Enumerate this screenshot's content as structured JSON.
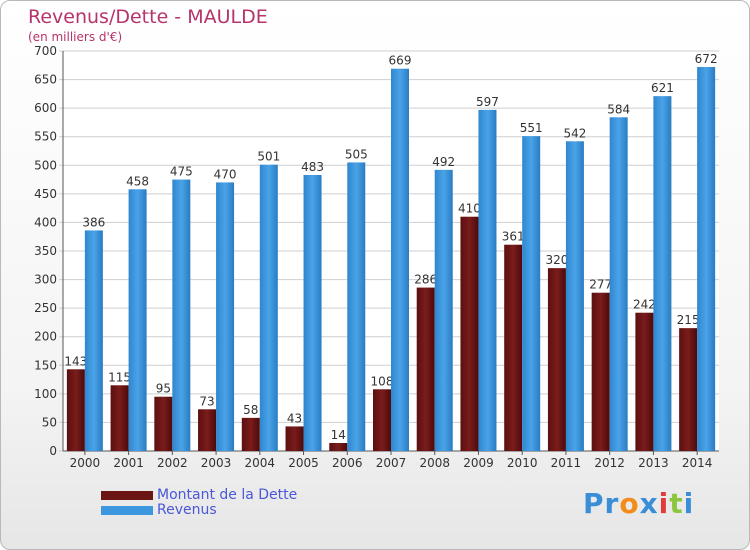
{
  "title": "Revenus/Dette - MAULDE",
  "subtitle": "(en milliers d'€)",
  "logo": {
    "letters": [
      "P",
      "r",
      "o",
      "x",
      "i",
      "t",
      "i"
    ],
    "colors": [
      "#3a8ed8",
      "#3a8ed8",
      "#f28c1b",
      "#3a8ed8",
      "#e23b3b",
      "#8cc63f",
      "#3a8ed8"
    ]
  },
  "colors": {
    "dette": "#7a1c1c",
    "revenus": "#4aa3e8"
  },
  "legend": [
    {
      "label": "Montant de la Dette",
      "color": "#6b1515"
    },
    {
      "label": "Revenus",
      "color": "#3d97df"
    }
  ],
  "chart_data": {
    "type": "bar",
    "title": "Revenus/Dette - MAULDE",
    "subtitle": "(en milliers d'€)",
    "categories": [
      "2000",
      "2001",
      "2002",
      "2003",
      "2004",
      "2005",
      "2006",
      "2007",
      "2008",
      "2009",
      "2010",
      "2011",
      "2012",
      "2013",
      "2014"
    ],
    "series": [
      {
        "name": "Montant de la Dette",
        "values": [
          143,
          115,
          95,
          73,
          58,
          43,
          14,
          108,
          286,
          410,
          361,
          320,
          277,
          242,
          215
        ]
      },
      {
        "name": "Revenus",
        "values": [
          386,
          458,
          475,
          470,
          501,
          483,
          505,
          669,
          492,
          597,
          551,
          542,
          584,
          621,
          672
        ]
      }
    ],
    "ylim": [
      0,
      700
    ],
    "yticks": [
      0,
      50,
      100,
      150,
      200,
      250,
      300,
      350,
      400,
      450,
      500,
      550,
      600,
      650,
      700
    ],
    "grid": true,
    "legend_position": "bottom-left"
  }
}
